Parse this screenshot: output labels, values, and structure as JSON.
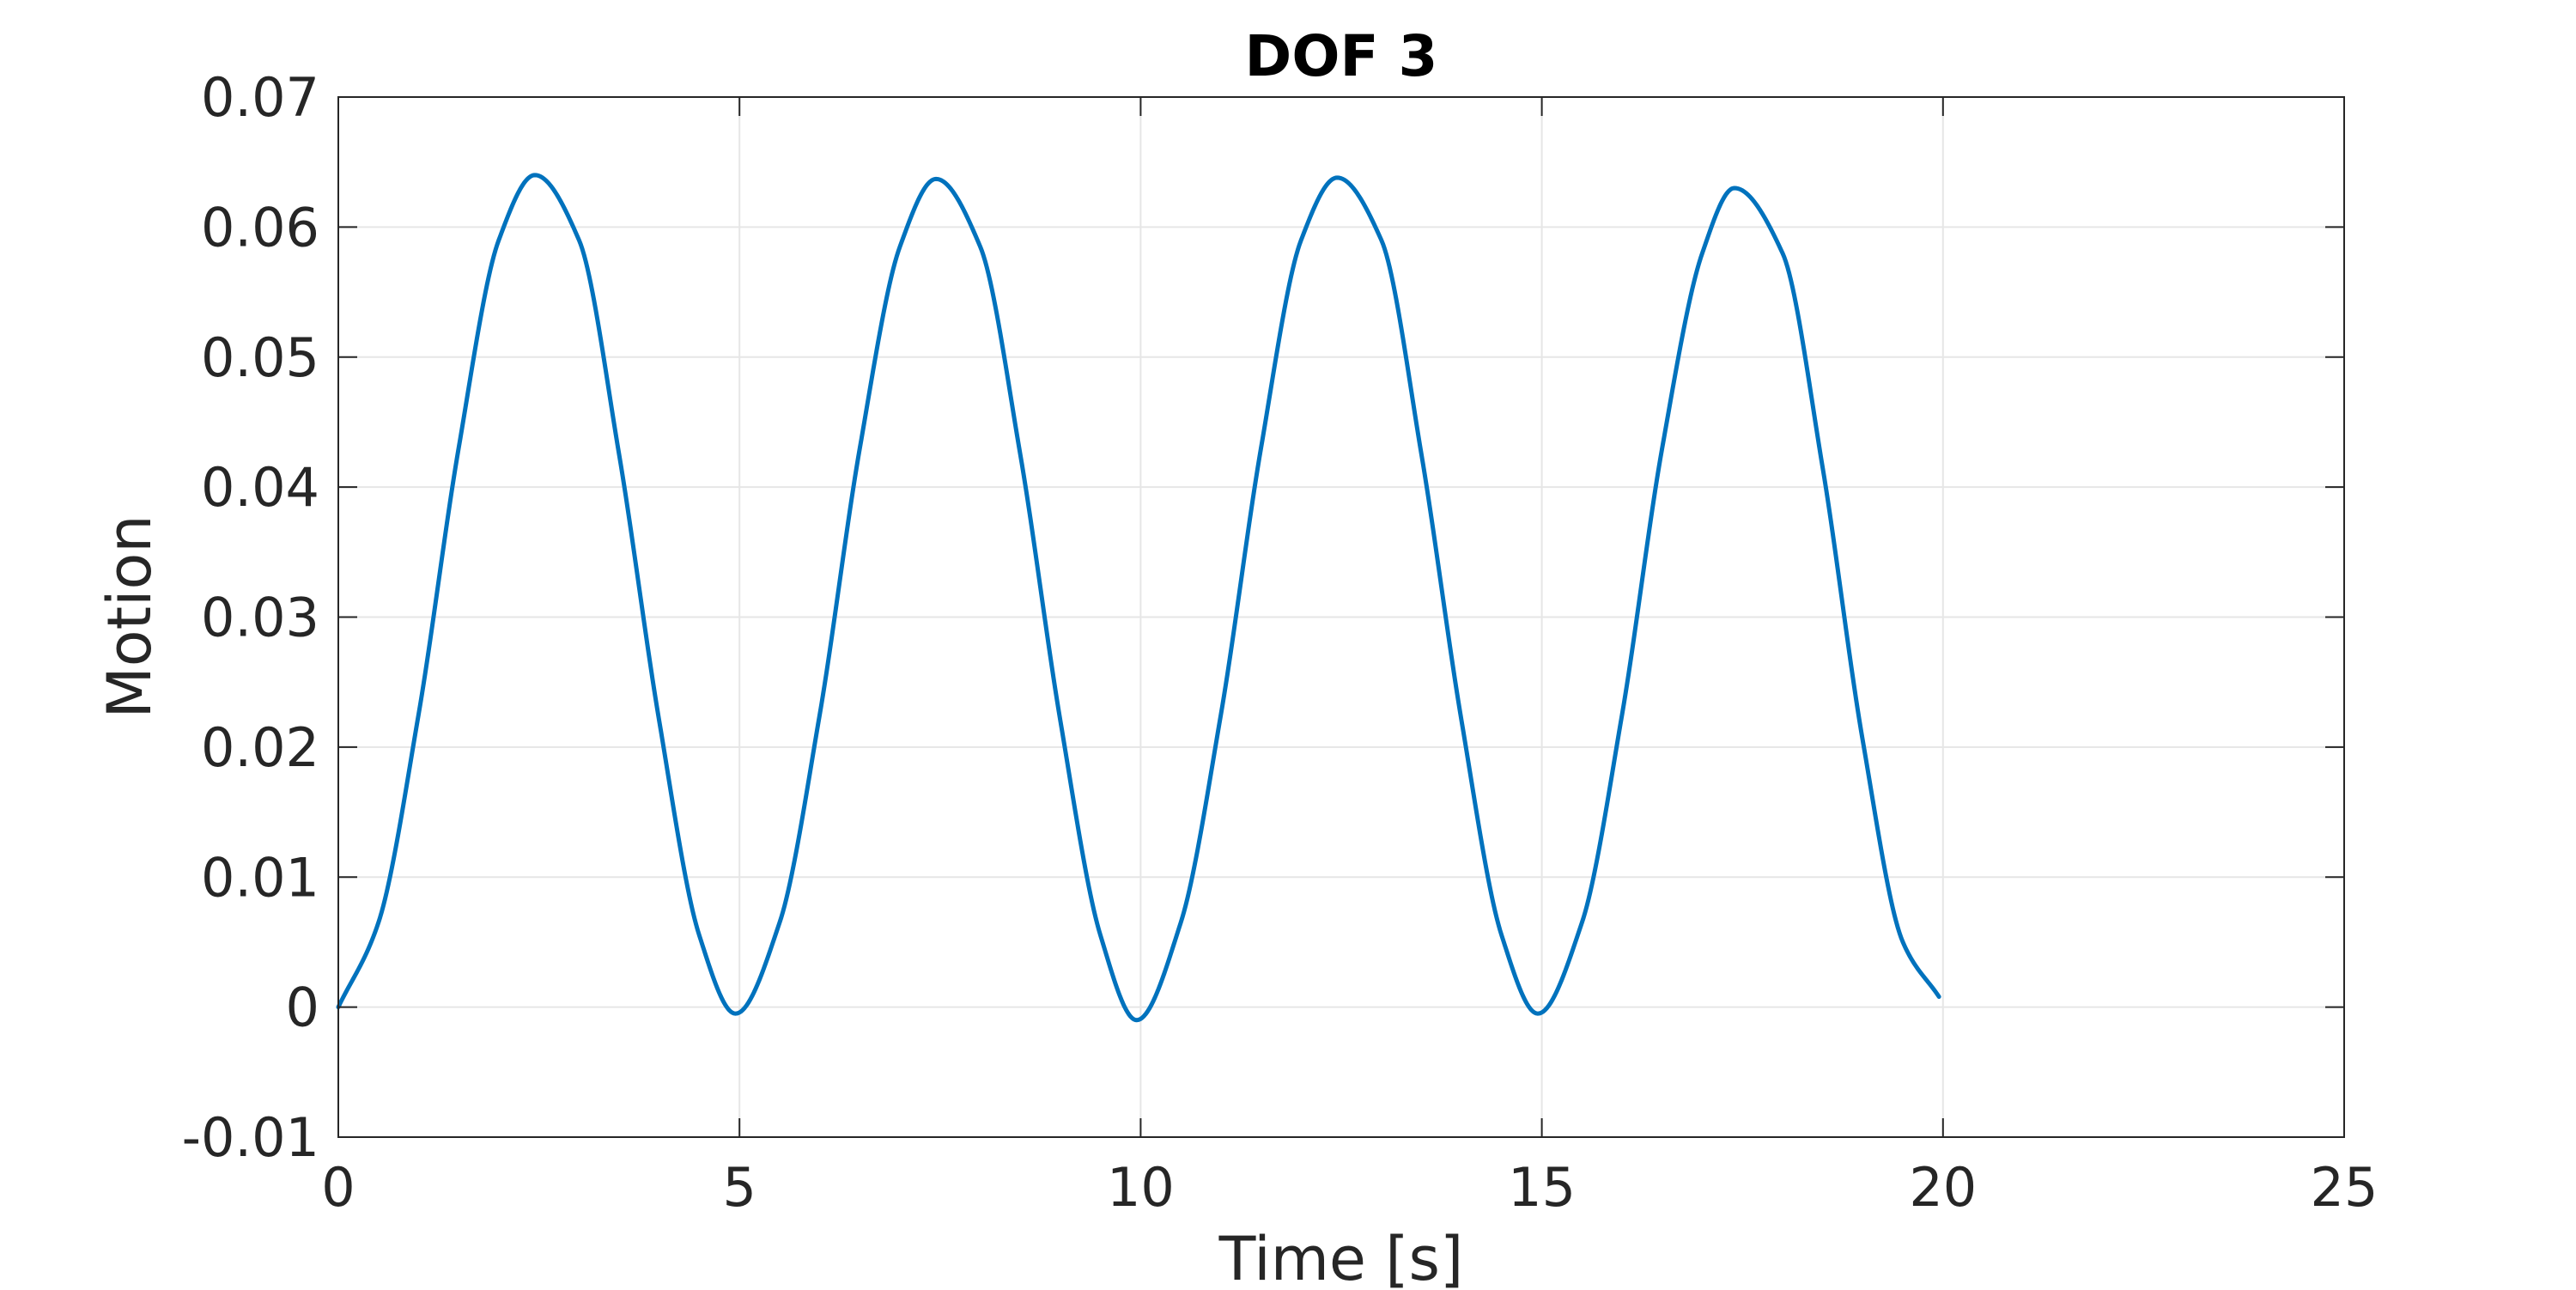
{
  "chart_data": {
    "type": "line",
    "title": "DOF 3",
    "xlabel": "Time [s]",
    "ylabel": "Motion",
    "xlim": [
      0,
      25
    ],
    "ylim": [
      -0.01,
      0.07
    ],
    "xticks": [
      0,
      5,
      10,
      15,
      20,
      25
    ],
    "xtick_labels": [
      "0",
      "5",
      "10",
      "15",
      "20",
      "25"
    ],
    "yticks": [
      -0.01,
      0,
      0.01,
      0.02,
      0.03,
      0.04,
      0.05,
      0.06,
      0.07
    ],
    "ytick_labels": [
      "-0.01",
      "0",
      "0.01",
      "0.02",
      "0.03",
      "0.04",
      "0.05",
      "0.06",
      "0.07"
    ],
    "grid": true,
    "legend": "none",
    "series": [
      {
        "color": "#0072BD",
        "x": [
          0,
          0.5,
          1.0,
          1.5,
          2.0,
          2.45,
          3.0,
          3.5,
          4.0,
          4.5,
          4.95,
          5.5,
          6.0,
          6.5,
          7.0,
          7.45,
          8.0,
          8.5,
          9.0,
          9.5,
          9.95,
          10.5,
          11.0,
          11.5,
          12.0,
          12.45,
          13.0,
          13.5,
          14.0,
          14.5,
          14.95,
          15.5,
          16.0,
          16.5,
          17.0,
          17.4,
          18.0,
          18.5,
          19.0,
          19.5,
          19.95
        ],
        "y": [
          0.0,
          0.0065,
          0.0225,
          0.043,
          0.059,
          0.064,
          0.059,
          0.0425,
          0.022,
          0.0055,
          -0.0005,
          0.0065,
          0.0225,
          0.043,
          0.0585,
          0.0637,
          0.0585,
          0.0425,
          0.022,
          0.0055,
          -0.001,
          0.0065,
          0.0225,
          0.043,
          0.059,
          0.0638,
          0.059,
          0.0425,
          0.022,
          0.0055,
          -0.0005,
          0.0065,
          0.0225,
          0.043,
          0.058,
          0.063,
          0.058,
          0.0415,
          0.0205,
          0.005,
          0.0008
        ]
      }
    ]
  },
  "style": {
    "axis_color": "#262626",
    "grid_color": "#e6e6e6",
    "plot_bg": "#ffffff"
  }
}
